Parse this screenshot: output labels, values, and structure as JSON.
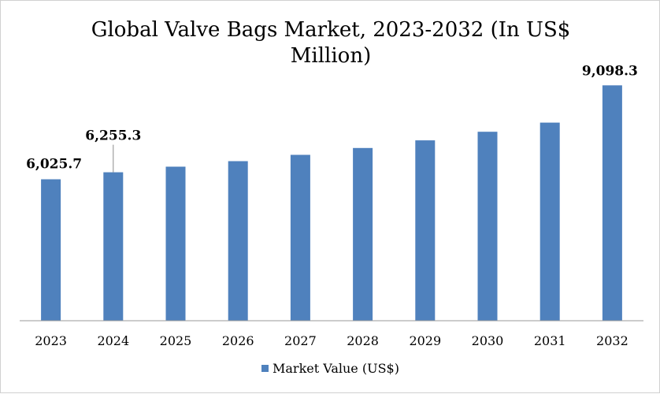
{
  "chart_data": {
    "type": "bar",
    "title_lines": [
      "Global Valve Bags Market, 2023-2032 (In US$",
      "Million)"
    ],
    "categories": [
      "2023",
      "2024",
      "2025",
      "2026",
      "2027",
      "2028",
      "2029",
      "2030",
      "2031",
      "2032"
    ],
    "series": [
      {
        "name": "Market Value (US$)",
        "color": "#4f81bd",
        "values": [
          6025.7,
          6255.3,
          6440,
          6620,
          6825,
          7050,
          7300,
          7580,
          7880,
          9098.3
        ]
      }
    ],
    "data_labels": [
      {
        "category_index": 0,
        "text": "6,025.7"
      },
      {
        "category_index": 1,
        "text": "6,255.3"
      },
      {
        "category_index": 9,
        "text": "9,098.3"
      }
    ],
    "ylim": [
      1400,
      9700
    ],
    "grid": false,
    "legend_position": "bottom"
  }
}
